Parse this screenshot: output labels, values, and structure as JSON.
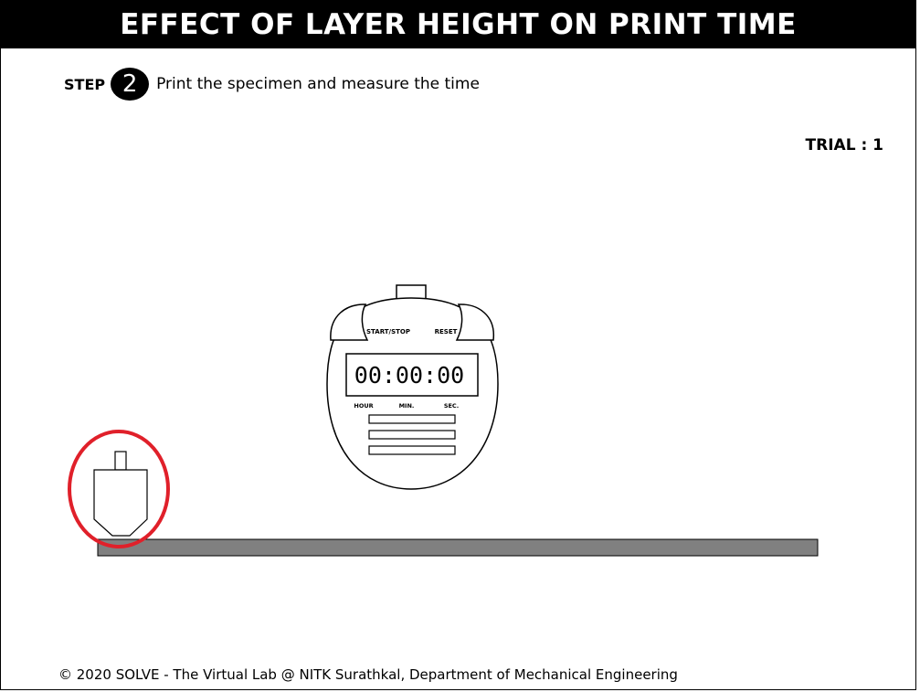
{
  "header": {
    "title": "EFFECT OF LAYER HEIGHT ON PRINT TIME"
  },
  "step": {
    "label": "STEP",
    "number": "2",
    "instruction": "Print the specimen and measure the time"
  },
  "trial": {
    "text": "TRIAL : 1"
  },
  "stopwatch": {
    "start_stop_label": "START/STOP",
    "reset_label": "RESET",
    "display": "00:00:00",
    "hour_label": "HOUR",
    "min_label": "MIN.",
    "sec_label": "SEC."
  },
  "colors": {
    "bed": "#808080",
    "highlight": "#e0202a"
  },
  "footer": {
    "text": "© 2020 SOLVE - The Virtual Lab @ NITK Surathkal, Department of Mechanical Engineering"
  }
}
